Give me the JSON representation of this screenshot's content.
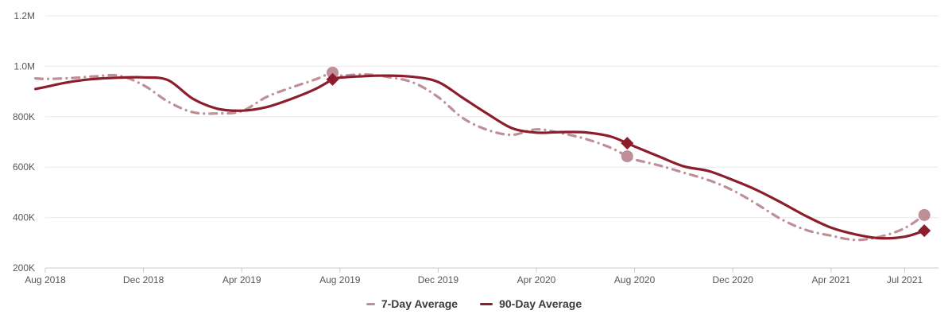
{
  "chart_data": {
    "type": "line",
    "title": "",
    "xlabel": "",
    "ylabel": "",
    "grid": true,
    "legend_position": "bottom",
    "ylim": [
      200000,
      1200000
    ],
    "yticks": [
      {
        "value": 1200000,
        "label": "1.2M"
      },
      {
        "value": 1000000,
        "label": "1.0M"
      },
      {
        "value": 800000,
        "label": "800K"
      },
      {
        "value": 600000,
        "label": "600K"
      },
      {
        "value": 400000,
        "label": "400K"
      },
      {
        "value": 200000,
        "label": "200K"
      }
    ],
    "xticks": [
      {
        "i": 0,
        "label": "Aug 2018"
      },
      {
        "i": 4,
        "label": "Dec 2018"
      },
      {
        "i": 8,
        "label": "Apr 2019"
      },
      {
        "i": 12,
        "label": "Aug 2019"
      },
      {
        "i": 16,
        "label": "Dec 2019"
      },
      {
        "i": 20,
        "label": "Apr 2020"
      },
      {
        "i": 24,
        "label": "Aug 2020"
      },
      {
        "i": 28,
        "label": "Dec 2020"
      },
      {
        "i": 32,
        "label": "Apr 2021"
      },
      {
        "i": 35,
        "label": "Jul 2021"
      }
    ],
    "x": [
      -0.4,
      0,
      1,
      2,
      3,
      4,
      5,
      6,
      7,
      8,
      9,
      10,
      11,
      11.7,
      12,
      13,
      14,
      15,
      16,
      17,
      18,
      19,
      20,
      21,
      22,
      23,
      23.7,
      24,
      25,
      26,
      27,
      28,
      29,
      30,
      31,
      32,
      33,
      34,
      35,
      35.8
    ],
    "series": [
      {
        "name": "7-Day Average",
        "color": "#BE8F96",
        "style": "dashdot",
        "marker": "circle",
        "values": [
          952000,
          950000,
          953000,
          960000,
          963000,
          925000,
          860000,
          818000,
          813000,
          822000,
          878000,
          915000,
          948000,
          975000,
          963000,
          968000,
          957000,
          935000,
          878000,
          795000,
          748000,
          728000,
          750000,
          735000,
          712000,
          678000,
          643000,
          630000,
          607000,
          578000,
          549000,
          508000,
          452000,
          392000,
          350000,
          328000,
          311000,
          324000,
          358000,
          410000
        ]
      },
      {
        "name": "90-Day Average",
        "color": "#8B1D2C",
        "style": "solid",
        "marker": "diamond",
        "values": [
          910000,
          918000,
          938000,
          950000,
          955000,
          956000,
          945000,
          872000,
          832000,
          824000,
          838000,
          870000,
          910000,
          948000,
          955000,
          961000,
          963000,
          958000,
          938000,
          875000,
          812000,
          755000,
          737000,
          739000,
          738000,
          722000,
          695000,
          682000,
          642000,
          603000,
          585000,
          549000,
          508000,
          458000,
          405000,
          360000,
          333000,
          318000,
          324000,
          348000
        ]
      }
    ],
    "highlight_points": [
      {
        "series": "7-Day Average",
        "x": 11.7,
        "value": 975000
      },
      {
        "series": "90-Day Average",
        "x": 11.7,
        "value": 948000
      },
      {
        "series": "7-Day Average",
        "x": 23.7,
        "value": 643000
      },
      {
        "series": "90-Day Average",
        "x": 23.7,
        "value": 695000
      },
      {
        "series": "7-Day Average",
        "x": 35.8,
        "value": 410000
      },
      {
        "series": "90-Day Average",
        "x": 35.8,
        "value": 348000
      }
    ]
  },
  "legend": {
    "items": [
      {
        "label": "7-Day Average",
        "color": "#BE8F96"
      },
      {
        "label": "90-Day Average",
        "color": "#8B1D2C"
      }
    ]
  },
  "colors": {
    "background": "#ffffff",
    "gridline": "#e9e9e9",
    "axis_line": "#c7ccd2",
    "axis_text": "#54575a",
    "legend_text": "#3c3c3c"
  }
}
